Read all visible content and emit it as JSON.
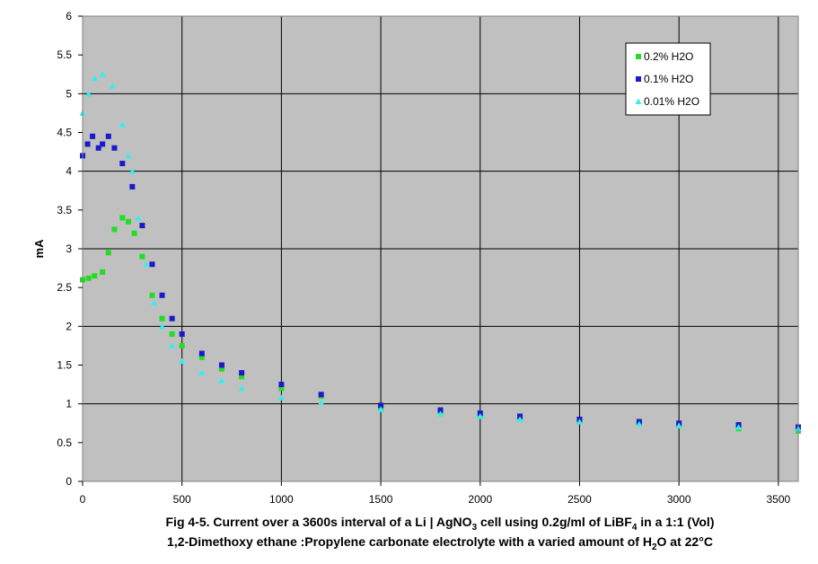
{
  "chart_data": {
    "type": "scatter",
    "caption": [
      [
        "Fig 4-5. Current over a 3600s interval of a Li | AgNO",
        "3",
        " cell using 0.2g/ml of LiBF",
        "4",
        " in a 1:1 (Vol)"
      ],
      [
        "1,2-Dimethoxy ethane :Propylene carbonate electrolyte with a varied amount of H",
        "2",
        "O at 22°C"
      ]
    ],
    "y_label": "mA",
    "xlim": [
      0,
      3600
    ],
    "xticks": [
      0,
      500,
      1000,
      1500,
      2000,
      2500,
      3000,
      3500
    ],
    "ylim": [
      0,
      6
    ],
    "yticks": [
      0,
      0.5,
      1,
      1.5,
      2,
      2.5,
      3,
      3.5,
      4,
      4.5,
      5,
      5.5,
      6
    ],
    "grid": true,
    "legend": "top-right",
    "series": [
      {
        "name": "0.2% H2O",
        "color": "#22dd22",
        "marker": "square",
        "x": [
          0,
          30,
          60,
          100,
          130,
          160,
          200,
          230,
          260,
          300,
          350,
          400,
          450,
          500,
          600,
          700,
          800,
          1000,
          1200,
          1500,
          1800,
          2000,
          2200,
          2500,
          2800,
          3000,
          3300,
          3600
        ],
        "values": [
          2.6,
          2.62,
          2.65,
          2.7,
          2.95,
          3.25,
          3.4,
          3.35,
          3.2,
          2.9,
          2.4,
          2.1,
          1.9,
          1.75,
          1.6,
          1.45,
          1.35,
          1.2,
          1.1,
          0.95,
          0.9,
          0.85,
          0.82,
          0.78,
          0.75,
          0.72,
          0.68,
          0.65
        ]
      },
      {
        "name": "0.1% H2O",
        "color": "#1a1acc",
        "marker": "square",
        "x": [
          0,
          25,
          50,
          80,
          100,
          130,
          160,
          200,
          250,
          300,
          350,
          400,
          450,
          500,
          600,
          700,
          800,
          1000,
          1200,
          1500,
          1800,
          2000,
          2200,
          2500,
          2800,
          3000,
          3300,
          3600
        ],
        "values": [
          4.2,
          4.35,
          4.45,
          4.3,
          4.35,
          4.45,
          4.3,
          4.1,
          3.8,
          3.3,
          2.8,
          2.4,
          2.1,
          1.9,
          1.65,
          1.5,
          1.4,
          1.25,
          1.12,
          0.98,
          0.92,
          0.88,
          0.84,
          0.8,
          0.77,
          0.75,
          0.73,
          0.7
        ]
      },
      {
        "name": "0.01% H2O",
        "color": "#33eeee",
        "marker": "triangle",
        "x": [
          0,
          30,
          60,
          100,
          150,
          200,
          230,
          250,
          280,
          320,
          360,
          400,
          450,
          500,
          600,
          700,
          800,
          1000,
          1200,
          1500,
          1800,
          2000,
          2200,
          2500,
          2800,
          3000,
          3300,
          3600
        ],
        "values": [
          4.75,
          5.0,
          5.2,
          5.25,
          5.1,
          4.6,
          4.2,
          4.0,
          3.4,
          2.8,
          2.3,
          2.0,
          1.75,
          1.55,
          1.4,
          1.3,
          1.2,
          1.08,
          1.02,
          0.93,
          0.87,
          0.84,
          0.8,
          0.77,
          0.74,
          0.72,
          0.7,
          0.68
        ]
      }
    ]
  }
}
